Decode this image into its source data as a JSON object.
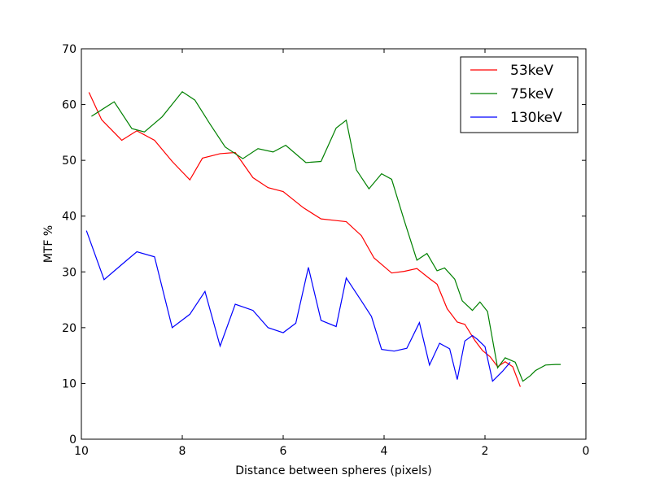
{
  "chart_data": {
    "type": "line",
    "xlabel": "Distance between spheres (pixels)",
    "ylabel": "MTF %",
    "xlim": [
      10,
      0
    ],
    "ylim": [
      0,
      70
    ],
    "x_ticks": [
      "10",
      "8",
      "6",
      "4",
      "2",
      "0"
    ],
    "y_ticks": [
      "0",
      "10",
      "20",
      "30",
      "40",
      "50",
      "60",
      "70"
    ],
    "grid": false,
    "legend_position": "top-right",
    "series": [
      {
        "name": "53keV",
        "color": "#ff0000",
        "x": [
          9.85,
          9.6,
          9.2,
          8.9,
          8.55,
          8.2,
          7.85,
          7.6,
          7.25,
          6.95,
          6.6,
          6.3,
          6.0,
          5.6,
          5.25,
          4.95,
          4.75,
          4.45,
          4.2,
          3.85,
          3.6,
          3.35,
          3.1,
          2.95,
          2.75,
          2.55,
          2.4,
          2.2,
          2.05,
          1.9,
          1.75,
          1.6,
          1.45,
          1.3
        ],
        "y": [
          62.2,
          57.3,
          53.6,
          55.3,
          53.6,
          49.8,
          46.5,
          50.4,
          51.2,
          51.4,
          46.9,
          45.1,
          44.4,
          41.5,
          39.5,
          39.2,
          39.0,
          36.5,
          32.5,
          29.8,
          30.1,
          30.6,
          28.8,
          27.8,
          23.4,
          21.0,
          20.6,
          17.7,
          15.9,
          14.8,
          13.0,
          13.9,
          13.0,
          9.4
        ]
      },
      {
        "name": "75keV",
        "color": "#008000",
        "x": [
          9.8,
          9.35,
          9.0,
          8.75,
          8.4,
          8.0,
          7.75,
          7.45,
          7.15,
          6.8,
          6.5,
          6.2,
          5.95,
          5.55,
          5.25,
          4.95,
          4.75,
          4.55,
          4.3,
          4.05,
          3.85,
          3.6,
          3.35,
          3.15,
          2.95,
          2.8,
          2.6,
          2.45,
          2.25,
          2.1,
          1.95,
          1.75,
          1.6,
          1.4,
          1.25,
          1.1,
          1.0,
          0.8,
          0.6,
          0.5
        ],
        "y": [
          57.9,
          60.5,
          55.7,
          55.1,
          57.8,
          62.3,
          60.8,
          56.5,
          52.4,
          50.3,
          52.1,
          51.5,
          52.7,
          49.6,
          49.8,
          55.8,
          57.2,
          48.3,
          44.9,
          47.6,
          46.6,
          39.2,
          32.1,
          33.3,
          30.2,
          30.7,
          28.7,
          24.8,
          23.1,
          24.6,
          22.9,
          12.8,
          14.6,
          13.8,
          10.4,
          11.4,
          12.3,
          13.3,
          13.4,
          13.4
        ]
      },
      {
        "name": "130keV",
        "color": "#0000ff",
        "x": [
          9.9,
          9.55,
          9.15,
          8.9,
          8.55,
          8.2,
          7.85,
          7.55,
          7.25,
          6.95,
          6.6,
          6.3,
          6.0,
          5.75,
          5.5,
          5.25,
          4.95,
          4.75,
          4.45,
          4.25,
          4.05,
          3.8,
          3.55,
          3.3,
          3.1,
          2.9,
          2.7,
          2.55,
          2.4,
          2.25,
          2.15,
          2.0,
          1.85,
          1.65,
          1.5
        ],
        "y": [
          37.4,
          28.6,
          31.7,
          33.6,
          32.7,
          20.0,
          22.4,
          26.5,
          16.7,
          24.2,
          23.1,
          20.0,
          19.1,
          20.8,
          30.8,
          21.3,
          20.2,
          28.9,
          24.8,
          22.0,
          16.1,
          15.8,
          16.3,
          20.9,
          13.3,
          17.2,
          16.2,
          10.7,
          17.6,
          18.6,
          17.9,
          16.6,
          10.4,
          12.2,
          13.8
        ]
      }
    ]
  }
}
